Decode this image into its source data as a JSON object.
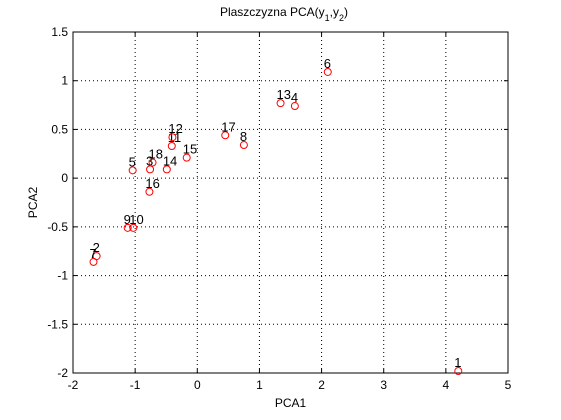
{
  "chart_data": {
    "type": "scatter",
    "title_main": "Plaszczyzna PCA(y",
    "title_sub1": "1",
    "title_mid": ",y",
    "title_sub2": "2",
    "title_end": ")",
    "xlabel": "PCA1",
    "ylabel": "PCA2",
    "xlim": [
      -2,
      5
    ],
    "ylim": [
      -2,
      1.5
    ],
    "xticks": [
      -2,
      -1,
      0,
      1,
      2,
      3,
      4,
      5
    ],
    "xtick_labels": [
      "-2",
      "-1",
      "0",
      "1",
      "2",
      "3",
      "4",
      "5"
    ],
    "yticks": [
      -2,
      -1.5,
      -1,
      -0.5,
      0,
      0.5,
      1,
      1.5
    ],
    "ytick_labels": [
      "-2",
      "-1.5",
      "-1",
      "-0.5",
      "0",
      "0.5",
      "1",
      "1.5"
    ],
    "grid": true,
    "grid_style": "dotted",
    "marker_color": "#ff0000",
    "points": [
      {
        "label": "1",
        "x": 4.2,
        "y": -1.98
      },
      {
        "label": "2",
        "x": -1.62,
        "y": -0.8
      },
      {
        "label": "7",
        "x": -1.67,
        "y": -0.86
      },
      {
        "label": "9",
        "x": -1.12,
        "y": -0.51
      },
      {
        "label": "10",
        "x": -1.03,
        "y": -0.51
      },
      {
        "label": "16",
        "x": -0.77,
        "y": -0.14
      },
      {
        "label": "5",
        "x": -1.04,
        "y": 0.08
      },
      {
        "label": "3",
        "x": -0.76,
        "y": 0.09
      },
      {
        "label": "18",
        "x": -0.72,
        "y": 0.16
      },
      {
        "label": "14",
        "x": -0.49,
        "y": 0.09
      },
      {
        "label": "11",
        "x": -0.41,
        "y": 0.33
      },
      {
        "label": "12",
        "x": -0.4,
        "y": 0.42
      },
      {
        "label": "15",
        "x": -0.17,
        "y": 0.21
      },
      {
        "label": "17",
        "x": 0.45,
        "y": 0.44
      },
      {
        "label": "8",
        "x": 0.75,
        "y": 0.34
      },
      {
        "label": "13",
        "x": 1.34,
        "y": 0.77
      },
      {
        "label": "4",
        "x": 1.57,
        "y": 0.74
      },
      {
        "label": "6",
        "x": 2.1,
        "y": 1.09
      }
    ]
  }
}
